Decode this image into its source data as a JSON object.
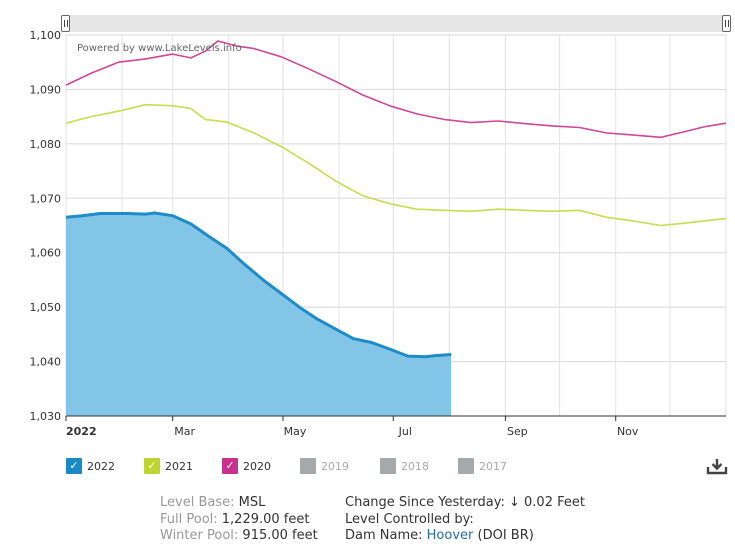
{
  "chart_data": {
    "type": "line",
    "title": "",
    "credit": "Powered by www.LakeLevels.info",
    "xlabel": "",
    "ylabel": "",
    "ylim": [
      1030,
      1100
    ],
    "y_ticks": [
      1030,
      1040,
      1050,
      1060,
      1070,
      1080,
      1090,
      1100
    ],
    "y_tick_labels": [
      "1,030",
      "1,040",
      "1,050",
      "1,060",
      "1,070",
      "1,080",
      "1,090",
      "1,100"
    ],
    "x_unit": "day of year",
    "xlim": [
      1,
      366
    ],
    "x_ticks": [
      {
        "label": "2022",
        "day": 1,
        "bold": true
      },
      {
        "label": "Mar",
        "day": 60
      },
      {
        "label": "May",
        "day": 121
      },
      {
        "label": "Jul",
        "day": 182
      },
      {
        "label": "Sep",
        "day": 244
      },
      {
        "label": "Nov",
        "day": 305
      }
    ],
    "grid": true,
    "legend_position": "bottom",
    "series": [
      {
        "name": "2020",
        "color": "#d0479a",
        "visible": true,
        "type": "line",
        "points": [
          [
            1,
            1090.8
          ],
          [
            15,
            1093
          ],
          [
            30,
            1095
          ],
          [
            45,
            1095.6
          ],
          [
            60,
            1096.5
          ],
          [
            70,
            1095.8
          ],
          [
            78,
            1097
          ],
          [
            85,
            1098.9
          ],
          [
            95,
            1098
          ],
          [
            105,
            1097.5
          ],
          [
            120,
            1096
          ],
          [
            135,
            1093.8
          ],
          [
            150,
            1091.5
          ],
          [
            165,
            1089
          ],
          [
            180,
            1087
          ],
          [
            195,
            1085.5
          ],
          [
            210,
            1084.5
          ],
          [
            225,
            1083.9
          ],
          [
            240,
            1084.2
          ],
          [
            255,
            1083.7
          ],
          [
            270,
            1083.3
          ],
          [
            285,
            1083
          ],
          [
            300,
            1082
          ],
          [
            315,
            1081.6
          ],
          [
            330,
            1081.2
          ],
          [
            340,
            1082
          ],
          [
            355,
            1083.2
          ],
          [
            366,
            1083.8
          ]
        ]
      },
      {
        "name": "2021",
        "color": "#c8dc50",
        "visible": true,
        "type": "line",
        "points": [
          [
            1,
            1083.8
          ],
          [
            15,
            1085
          ],
          [
            30,
            1086
          ],
          [
            45,
            1087.2
          ],
          [
            60,
            1087
          ],
          [
            70,
            1086.5
          ],
          [
            78,
            1084.5
          ],
          [
            90,
            1084
          ],
          [
            105,
            1082
          ],
          [
            120,
            1079.5
          ],
          [
            135,
            1076.5
          ],
          [
            150,
            1073.2
          ],
          [
            165,
            1070.5
          ],
          [
            180,
            1069
          ],
          [
            195,
            1068
          ],
          [
            210,
            1067.8
          ],
          [
            225,
            1067.6
          ],
          [
            240,
            1068
          ],
          [
            255,
            1067.8
          ],
          [
            270,
            1067.6
          ],
          [
            285,
            1067.8
          ],
          [
            300,
            1066.5
          ],
          [
            315,
            1065.8
          ],
          [
            330,
            1065
          ],
          [
            345,
            1065.5
          ],
          [
            366,
            1066.3
          ]
        ]
      },
      {
        "name": "2022",
        "color": "#1d8cc8",
        "fill": "#83c5e6",
        "visible": true,
        "type": "area",
        "points": [
          [
            1,
            1066.5
          ],
          [
            10,
            1066.8
          ],
          [
            20,
            1067.2
          ],
          [
            35,
            1067.2
          ],
          [
            45,
            1067.1
          ],
          [
            50,
            1067.3
          ],
          [
            60,
            1066.8
          ],
          [
            70,
            1065.3
          ],
          [
            80,
            1063
          ],
          [
            90,
            1060.8
          ],
          [
            100,
            1057.8
          ],
          [
            110,
            1055
          ],
          [
            120,
            1052.5
          ],
          [
            130,
            1050
          ],
          [
            140,
            1047.8
          ],
          [
            150,
            1046
          ],
          [
            160,
            1044.2
          ],
          [
            170,
            1043.5
          ],
          [
            180,
            1042.3
          ],
          [
            190,
            1041
          ],
          [
            200,
            1040.9
          ],
          [
            205,
            1041.1
          ],
          [
            214,
            1041.3
          ]
        ]
      },
      {
        "name": "2019",
        "color": "#b0b0b0",
        "visible": false,
        "type": "line",
        "points": []
      },
      {
        "name": "2018",
        "color": "#b0b0b0",
        "visible": false,
        "type": "line",
        "points": []
      },
      {
        "name": "2017",
        "color": "#b0b0b0",
        "visible": false,
        "type": "line",
        "points": []
      }
    ]
  },
  "legend": {
    "items": [
      {
        "label": "2022",
        "color": "#1a8ac6",
        "checked": true
      },
      {
        "label": "2021",
        "color": "#bcd531",
        "checked": true
      },
      {
        "label": "2020",
        "color": "#c8308f",
        "checked": true
      },
      {
        "label": "2019",
        "color": "#a3aaaa",
        "checked": false
      },
      {
        "label": "2018",
        "color": "#a3aaaa",
        "checked": false
      },
      {
        "label": "2017",
        "color": "#a3aaaa",
        "checked": false
      }
    ],
    "check_glyph": "✓"
  },
  "download_icon": "download-icon",
  "info": {
    "level_base_label": "Level Base:",
    "level_base_value": "MSL",
    "full_pool_label": "Full Pool:",
    "full_pool_value": "1,229.00 feet",
    "winter_pool_label": "Winter Pool:",
    "winter_pool_value": "915.00 feet",
    "change_label": "Change Since Yesterday:",
    "change_arrow": "↓",
    "change_value": "0.02 Feet",
    "controlled_label": "Level Controlled by:",
    "dam_label": "Dam Name:",
    "dam_link": "Hoover",
    "dam_org": "(DOI BR)"
  }
}
